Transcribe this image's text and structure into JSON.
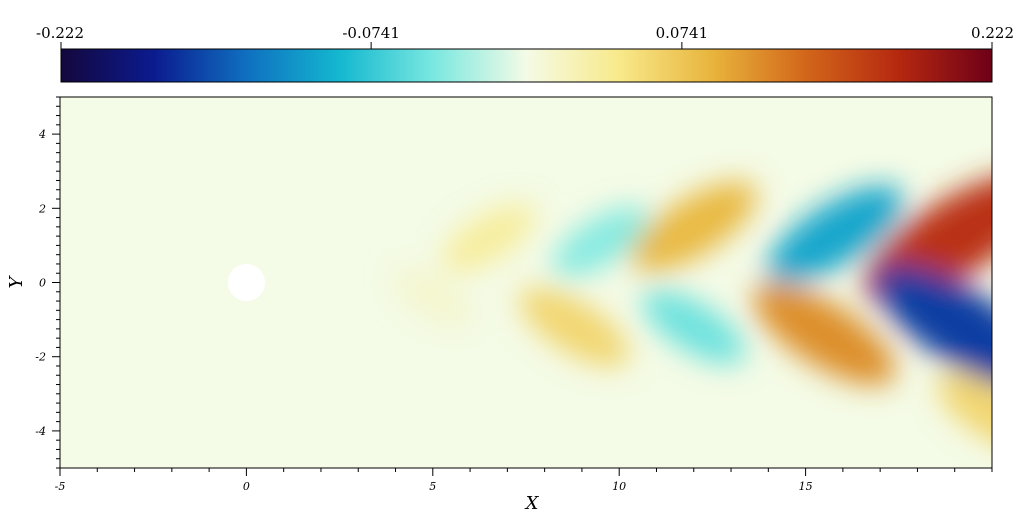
{
  "chart_data": {
    "type": "heatmap",
    "title": "",
    "xlabel": "X",
    "ylabel": "Y",
    "xlim": [
      -5,
      20
    ],
    "ylim": [
      -5,
      5
    ],
    "x_ticks": [
      -5,
      0,
      5,
      10,
      15
    ],
    "x_tick_labels": [
      "-5",
      "0",
      "5",
      "10",
      "15"
    ],
    "y_ticks": [
      4,
      2,
      0,
      -2,
      -4
    ],
    "y_tick_labels": [
      "4",
      "2",
      "0",
      "-2",
      "-4"
    ],
    "colorbar": {
      "placement": "top",
      "range": [
        -0.222,
        0.222
      ],
      "ticks": [
        -0.222,
        -0.0741,
        0.0741,
        0.222
      ],
      "tick_labels": [
        "-0.222",
        "-0.0741",
        "0.0741",
        "0.222"
      ],
      "colors": [
        "#14073d",
        "#0b1b8f",
        "#0f70c0",
        "#14b8d0",
        "#7ae8e0",
        "#f4fbe6",
        "#f8e98a",
        "#e8b43c",
        "#d2661a",
        "#b52810",
        "#6e0018"
      ]
    },
    "obstacle": {
      "shape": "circle",
      "center": [
        0,
        0
      ],
      "radius": 0.5
    },
    "field_features": [
      {
        "x": 6.5,
        "y": 1.2,
        "value": 0.035
      },
      {
        "x": 9.5,
        "y": 1.1,
        "value": -0.04
      },
      {
        "x": 12.0,
        "y": 1.5,
        "value": 0.085
      },
      {
        "x": 15.8,
        "y": 1.3,
        "value": -0.1
      },
      {
        "x": 19.0,
        "y": 1.2,
        "value": 0.17
      },
      {
        "x": 5.0,
        "y": -0.4,
        "value": 0.012
      },
      {
        "x": 8.8,
        "y": -1.2,
        "value": 0.06
      },
      {
        "x": 12.0,
        "y": -1.2,
        "value": -0.05
      },
      {
        "x": 15.5,
        "y": -1.4,
        "value": 0.11
      },
      {
        "x": 19.2,
        "y": -1.2,
        "value": -0.16
      },
      {
        "x": 20.0,
        "y": -3.5,
        "value": 0.06
      }
    ]
  }
}
